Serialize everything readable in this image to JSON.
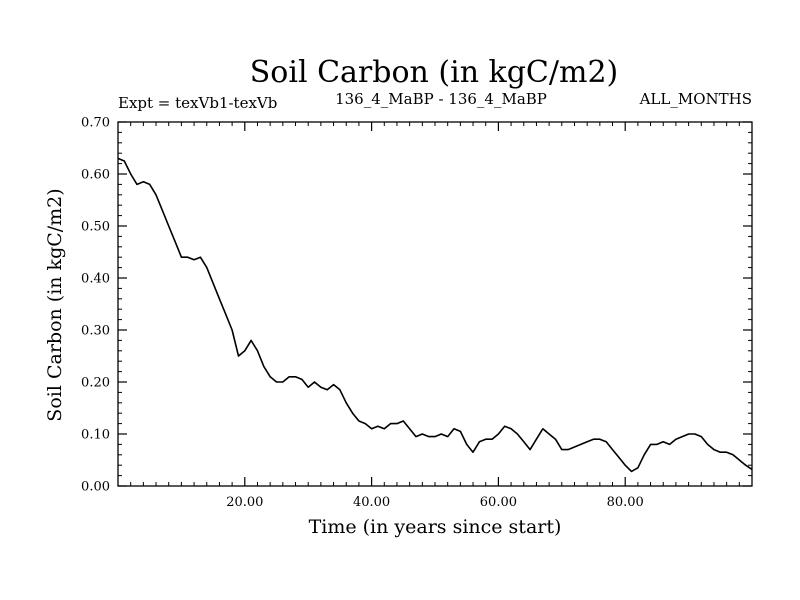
{
  "chart_data": {
    "type": "line",
    "title": "Soil Carbon (in kgC/m2)",
    "subtitle_left": "Expt = texVb1-texVb",
    "subtitle_center": "136_4_MaBP - 136_4_MaBP",
    "subtitle_right": "ALL_MONTHS",
    "xlabel": "Time (in years since start)",
    "ylabel": "Soil Carbon (in kgC/m2)",
    "xlim": [
      0,
      100
    ],
    "ylim": [
      0,
      0.7
    ],
    "xticks": [
      20,
      40,
      60,
      80
    ],
    "xtick_labels": [
      "20.00",
      "40.00",
      "60.00",
      "80.00"
    ],
    "yticks": [
      0,
      0.1,
      0.2,
      0.3,
      0.4,
      0.5,
      0.6,
      0.7
    ],
    "ytick_labels": [
      "0.00",
      "0.10",
      "0.20",
      "0.30",
      "0.40",
      "0.50",
      "0.60",
      "0.70"
    ],
    "line_color": "#000000",
    "series": [
      {
        "name": "Soil Carbon",
        "x": [
          0,
          1,
          2,
          3,
          4,
          5,
          6,
          7,
          8,
          9,
          10,
          11,
          12,
          13,
          14,
          15,
          16,
          17,
          18,
          19,
          20,
          21,
          22,
          23,
          24,
          25,
          26,
          27,
          28,
          29,
          30,
          31,
          32,
          33,
          34,
          35,
          36,
          37,
          38,
          39,
          40,
          41,
          42,
          43,
          44,
          45,
          46,
          47,
          48,
          49,
          50,
          51,
          52,
          53,
          54,
          55,
          56,
          57,
          58,
          59,
          60,
          61,
          62,
          63,
          64,
          65,
          66,
          67,
          68,
          69,
          70,
          71,
          72,
          73,
          74,
          75,
          76,
          77,
          78,
          79,
          80,
          81,
          82,
          83,
          84,
          85,
          86,
          87,
          88,
          89,
          90,
          91,
          92,
          93,
          94,
          95,
          96,
          97,
          98,
          99,
          100
        ],
        "values": [
          0.63,
          0.625,
          0.6,
          0.58,
          0.585,
          0.58,
          0.56,
          0.53,
          0.5,
          0.47,
          0.44,
          0.44,
          0.435,
          0.44,
          0.42,
          0.39,
          0.36,
          0.33,
          0.3,
          0.25,
          0.26,
          0.28,
          0.26,
          0.23,
          0.21,
          0.2,
          0.2,
          0.21,
          0.21,
          0.205,
          0.19,
          0.2,
          0.19,
          0.185,
          0.195,
          0.185,
          0.16,
          0.14,
          0.125,
          0.12,
          0.11,
          0.115,
          0.11,
          0.12,
          0.12,
          0.125,
          0.11,
          0.095,
          0.1,
          0.095,
          0.095,
          0.1,
          0.095,
          0.11,
          0.105,
          0.08,
          0.065,
          0.085,
          0.09,
          0.09,
          0.1,
          0.115,
          0.11,
          0.1,
          0.085,
          0.07,
          0.09,
          0.11,
          0.1,
          0.09,
          0.07,
          0.07,
          0.075,
          0.08,
          0.085,
          0.09,
          0.09,
          0.085,
          0.07,
          0.055,
          0.04,
          0.028,
          0.035,
          0.06,
          0.08,
          0.08,
          0.085,
          0.08,
          0.09,
          0.095,
          0.1,
          0.1,
          0.095,
          0.08,
          0.07,
          0.065,
          0.065,
          0.06,
          0.05,
          0.04,
          0.032
        ]
      }
    ]
  }
}
